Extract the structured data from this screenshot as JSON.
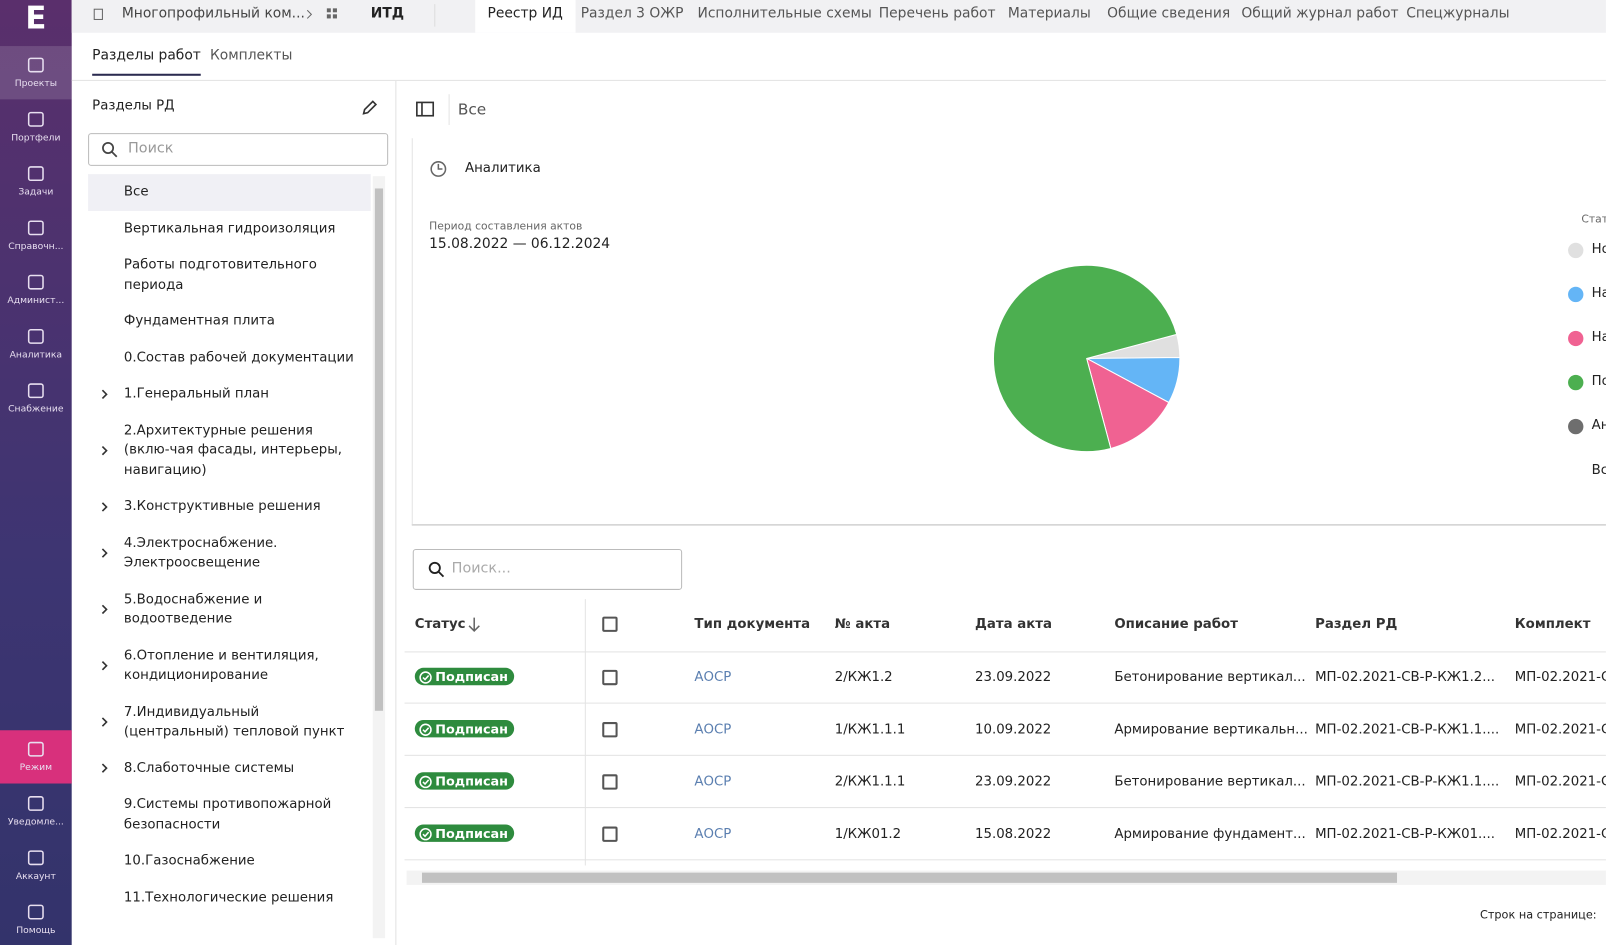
{
  "sidebar": {
    "logo": "E",
    "items": [
      "Проекты",
      "Портфели",
      "Задачи",
      "Справочн...",
      "Админист...",
      "Аналитика",
      "Снабжение"
    ],
    "active": 0,
    "bottom_items": [
      "Режим",
      "Уведомле...",
      "Аккаунт",
      "Помощь"
    ],
    "bottom_active": 0
  },
  "breadcrumb": [
    "Многопрофильный ком...",
    "ИТД"
  ],
  "top_tabs": [
    "Реестр ИД",
    "Раздел 3 ОЖР",
    "Исполнительные схемы",
    "Перечень работ",
    "Материалы",
    "Общие сведения",
    "Общий журнал работ",
    "Спецжурналы"
  ],
  "top_tab_active": 0,
  "sub_tabs": [
    "Разделы работ",
    "Комплекты"
  ],
  "sub_tab_active": 0,
  "left_panel": {
    "title": "Разделы РД",
    "search_placeholder": "Поиск",
    "active": 0,
    "items": [
      {
        "label": "Все",
        "expandable": false
      },
      {
        "label": "Вертикальная гидроизоляция",
        "expandable": false
      },
      {
        "label": "Работы подготовительного периода",
        "expandable": false
      },
      {
        "label": "Фундаментная плита",
        "expandable": false
      },
      {
        "label": "0.Состав рабочей документации",
        "expandable": false
      },
      {
        "label": "1.Генеральный план",
        "expandable": true
      },
      {
        "label": "2.Архитектурные решения (вклю-чая фасады, интерьеры, навигацию)",
        "expandable": true
      },
      {
        "label": "3.Конструктивные решения",
        "expandable": true
      },
      {
        "label": "4.Электроснабжение. Электроосвещение",
        "expandable": true
      },
      {
        "label": "5.Водоснабжение и водоотведение",
        "expandable": true
      },
      {
        "label": "6.Отопление и вентиляция, кондиционирование",
        "expandable": true
      },
      {
        "label": "7.Индивидуальный (центральный) тепловой пункт",
        "expandable": true
      },
      {
        "label": "8.Слаботочные системы",
        "expandable": true
      },
      {
        "label": "9.Системы противопожарной безопасности",
        "expandable": false
      },
      {
        "label": "10.Газоснабжение",
        "expandable": false
      },
      {
        "label": "11.Технологические решения",
        "expandable": false
      }
    ]
  },
  "main": {
    "view_label": "Все",
    "analytics": {
      "title": "Аналитика",
      "period_label": "Период составления актов",
      "period": "15.08.2022 — 06.12.2024",
      "chart": {
        "type": "pie",
        "legend_title": "Стат",
        "categories": [
          "Но",
          "На",
          "На",
          "По",
          "Ан"
        ],
        "colors": [
          "#e0e0e0",
          "#64b5f6",
          "#f06292",
          "#4caf50",
          "#6e6e6e"
        ],
        "values": [
          4,
          8,
          13,
          75,
          0
        ],
        "total_label": "Вс"
      }
    },
    "table": {
      "search_placeholder": "Поиск...",
      "columns": [
        "Статус",
        "Тип документа",
        "№ акта",
        "Дата акта",
        "Описание работ",
        "Раздел РД",
        "Комплект"
      ],
      "rows": [
        [
          "Подписан",
          "АОСР",
          "2/КЖ1.2",
          "23.09.2022",
          "Бетонирование вертикал...",
          "МП-02.2021-СВ-Р-КЖ1.2...",
          "МП-02.2021-С"
        ],
        [
          "Подписан",
          "АОСР",
          "1/КЖ1.1.1",
          "10.09.2022",
          "Армирование вертикальн...",
          "МП-02.2021-СВ-Р-КЖ1.1....",
          "МП-02.2021-С"
        ],
        [
          "Подписан",
          "АОСР",
          "2/КЖ1.1.1",
          "23.09.2022",
          "Бетонирование вертикал...",
          "МП-02.2021-СВ-Р-КЖ1.1....",
          "МП-02.2021-С"
        ],
        [
          "Подписан",
          "АОСР",
          "1/КЖ01.2",
          "15.08.2022",
          "Армирование фундамент...",
          "МП-02.2021-СВ-Р-КЖ01....",
          "МП-02.2021-С"
        ]
      ],
      "rows_per_page_label": "Строк на странице:"
    }
  }
}
